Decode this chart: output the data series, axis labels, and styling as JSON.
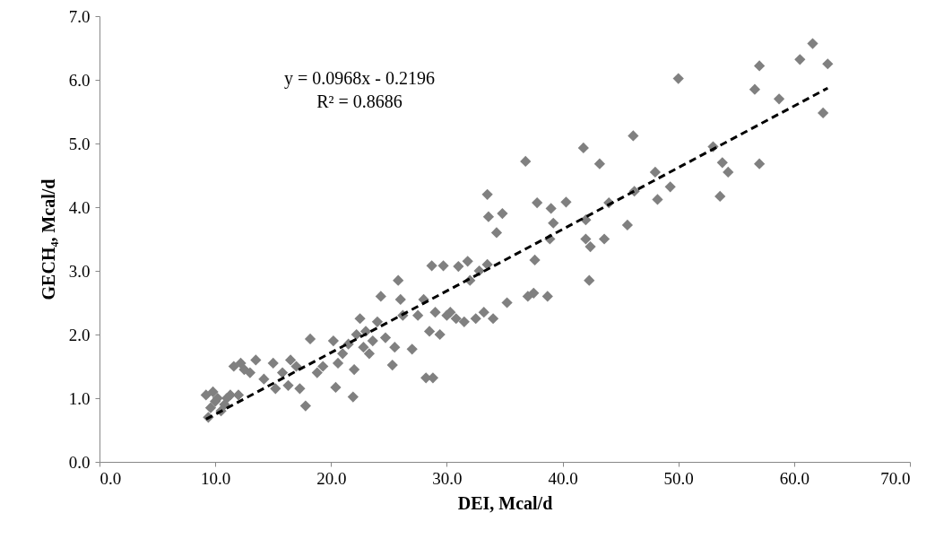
{
  "chart_data": {
    "type": "scatter",
    "xlabel": "DEI, Mcal/d",
    "ylabel": "GECH₄, Mcal/d",
    "annotations": [
      "y = 0.0968x - 0.2196",
      "R² = 0.8686"
    ],
    "xlim": [
      0,
      70
    ],
    "ylim": [
      0,
      7
    ],
    "xticks": [
      {
        "value": 0,
        "label": "0.0"
      },
      {
        "value": 10,
        "label": "10.0"
      },
      {
        "value": 20,
        "label": "20.0"
      },
      {
        "value": 30,
        "label": "30.0"
      },
      {
        "value": 40,
        "label": "40.0"
      },
      {
        "value": 50,
        "label": "50.0"
      },
      {
        "value": 60,
        "label": "60.0"
      },
      {
        "value": 70,
        "label": "70.0"
      }
    ],
    "yticks": [
      {
        "value": 0,
        "label": "0.0"
      },
      {
        "value": 1,
        "label": "1.0"
      },
      {
        "value": 2,
        "label": "2.0"
      },
      {
        "value": 3,
        "label": "3.0"
      },
      {
        "value": 4,
        "label": "4.0"
      },
      {
        "value": 5,
        "label": "5.0"
      },
      {
        "value": 6,
        "label": "6.0"
      },
      {
        "value": 7,
        "label": "7.0"
      }
    ],
    "grid": false,
    "series": [
      {
        "color": "#808080",
        "marker": "diamond",
        "x": [
          9.2,
          9.4,
          9.6,
          9.8,
          10.0,
          10.2,
          10.5,
          10.8,
          11.0,
          11.3,
          11.6,
          12.0,
          12.2,
          12.5,
          13.0,
          13.5,
          14.2,
          15.0,
          15.2,
          15.8,
          16.3,
          16.5,
          17.0,
          17.3,
          17.8,
          18.2,
          18.8,
          19.3,
          20.2,
          20.4,
          20.6,
          21.0,
          21.5,
          21.9,
          22.0,
          22.2,
          22.5,
          22.8,
          23.0,
          23.3,
          23.6,
          24.0,
          24.3,
          24.7,
          25.3,
          25.5,
          25.8,
          26.0,
          26.2,
          27.0,
          27.5,
          28.0,
          28.2,
          28.5,
          28.7,
          28.8,
          29.0,
          29.4,
          29.7,
          30.0,
          30.3,
          30.8,
          31.0,
          31.5,
          31.8,
          32.0,
          32.5,
          32.8,
          33.2,
          33.5,
          33.5,
          33.6,
          34.0,
          34.3,
          34.8,
          35.2,
          36.8,
          37.0,
          37.5,
          37.6,
          37.8,
          38.7,
          38.9,
          39.0,
          39.2,
          40.3,
          41.8,
          42.0,
          42.0,
          42.3,
          42.4,
          43.2,
          43.6,
          44.0,
          45.6,
          46.1,
          46.2,
          48.0,
          48.2,
          49.3,
          50.0,
          53.0,
          53.6,
          53.8,
          54.3,
          56.6,
          57.0,
          57.0,
          58.7,
          60.5,
          61.6,
          62.5,
          62.9
        ],
        "values": [
          1.05,
          0.7,
          0.85,
          1.1,
          0.95,
          1.0,
          0.8,
          0.9,
          1.0,
          1.05,
          1.5,
          1.05,
          1.55,
          1.45,
          1.4,
          1.6,
          1.3,
          1.55,
          1.15,
          1.4,
          1.2,
          1.6,
          1.5,
          1.15,
          0.88,
          1.93,
          1.4,
          1.5,
          1.9,
          1.17,
          1.55,
          1.7,
          1.85,
          1.02,
          1.45,
          2.0,
          2.25,
          1.8,
          2.05,
          1.7,
          1.9,
          2.2,
          2.6,
          1.95,
          1.52,
          1.8,
          2.85,
          2.55,
          2.3,
          1.77,
          2.3,
          2.55,
          1.32,
          2.05,
          3.08,
          1.32,
          2.35,
          2.0,
          3.08,
          2.3,
          2.35,
          2.25,
          3.07,
          2.2,
          3.15,
          2.85,
          2.25,
          3.0,
          2.35,
          3.1,
          4.2,
          3.85,
          2.25,
          3.6,
          3.9,
          2.5,
          4.72,
          2.6,
          2.65,
          3.17,
          4.07,
          2.6,
          3.5,
          3.98,
          3.75,
          4.08,
          4.93,
          3.5,
          3.8,
          2.85,
          3.38,
          4.68,
          3.5,
          4.07,
          3.72,
          5.12,
          4.25,
          4.55,
          4.12,
          4.32,
          6.02,
          4.95,
          4.17,
          4.7,
          4.55,
          5.85,
          6.22,
          4.68,
          5.7,
          6.32,
          6.57,
          5.48,
          6.25
        ]
      },
      {
        "type": "line",
        "color": "#000000",
        "line_style": "dashed",
        "x": [
          9.2,
          62.9
        ],
        "values": [
          0.67,
          5.87
        ]
      }
    ]
  }
}
